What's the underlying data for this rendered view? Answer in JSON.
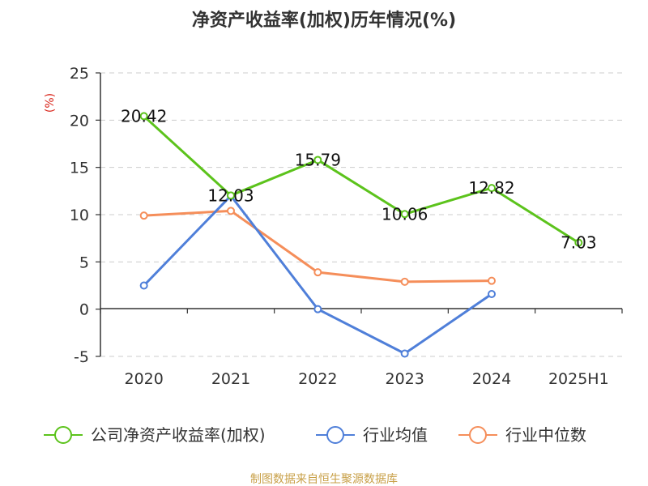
{
  "chart_data": {
    "type": "line",
    "title": "净资产收益率(加权)历年情况(%)",
    "ylabel": "(%)",
    "categories": [
      "2020",
      "2021",
      "2022",
      "2023",
      "2024",
      "2025H1"
    ],
    "y_ticks": [
      "25",
      "20",
      "15",
      "10",
      "5",
      "0",
      "-5"
    ],
    "ylim": [
      -5,
      25
    ],
    "grid": true,
    "legend_position": "bottom",
    "series": [
      {
        "name": "公司净资产收益率(加权)",
        "color": "#5cc31c",
        "values": [
          20.42,
          12.03,
          15.79,
          10.06,
          12.82,
          7.03
        ],
        "labels": [
          "20.42",
          "12.03",
          "15.79",
          "10.06",
          "12.82",
          "7.03"
        ]
      },
      {
        "name": "行业均值",
        "color": "#4f7fd9",
        "values": [
          2.5,
          12.0,
          0.0,
          -4.7,
          1.6,
          null
        ],
        "labels": null
      },
      {
        "name": "行业中位数",
        "color": "#f58e5a",
        "values": [
          9.9,
          10.4,
          3.9,
          2.9,
          3.0,
          null
        ],
        "labels": null
      }
    ]
  },
  "footer": {
    "source": "制图数据来自恒生聚源数据库"
  }
}
